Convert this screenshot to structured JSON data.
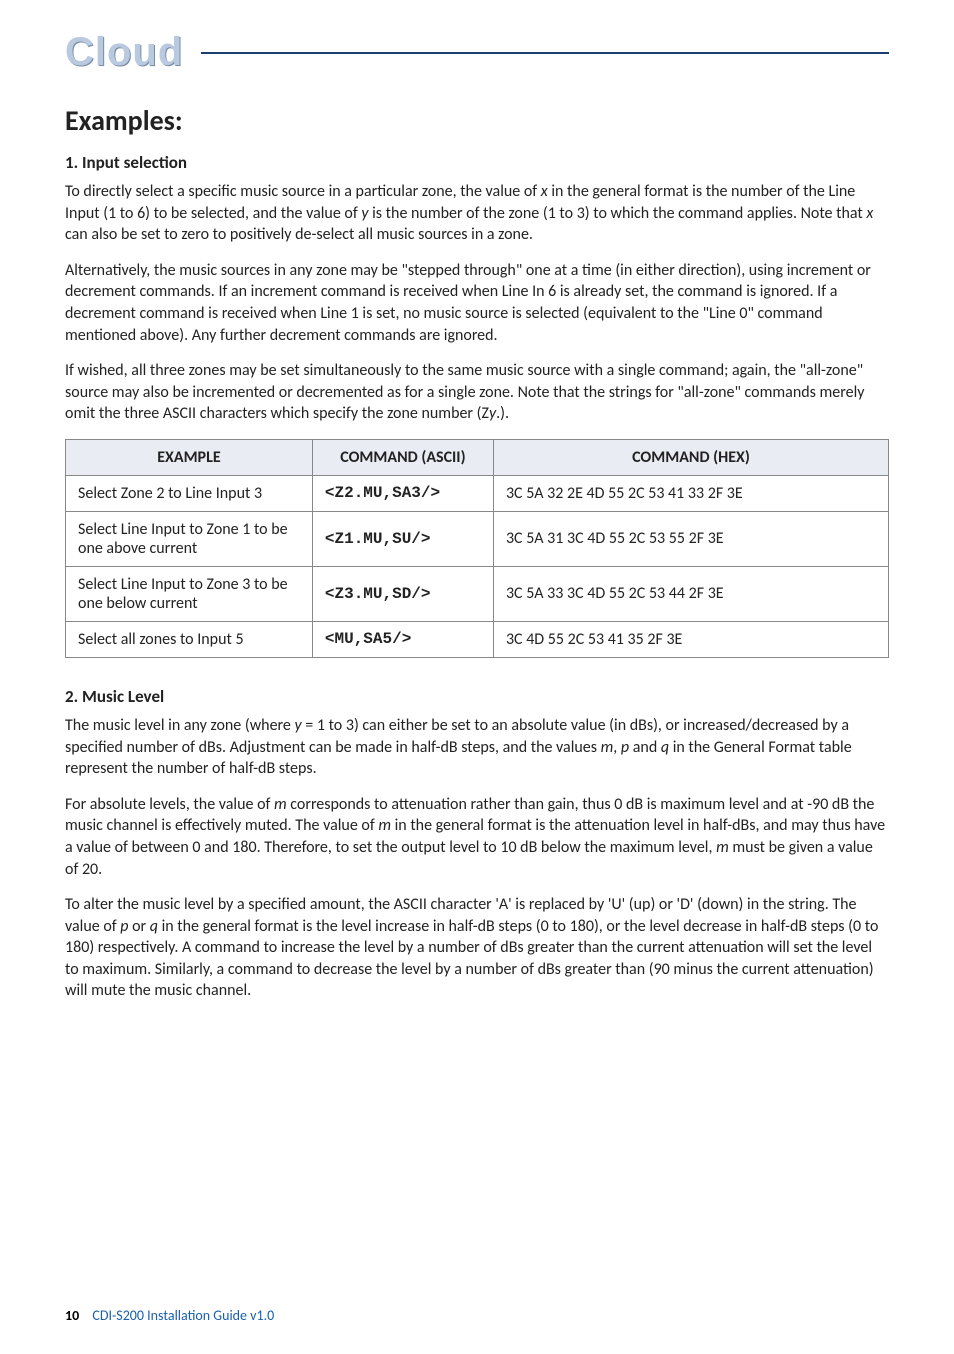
{
  "logo": {
    "text": "Cloud"
  },
  "heading": "Examples:",
  "section1": {
    "title": "1. Input selection",
    "p1_a": "To directly select a specific music source in a particular zone, the value of ",
    "p1_x": "x",
    "p1_b": " in the general format is the number of the Line Input (1 to 6) to be selected, and the value of ",
    "p1_y": "y",
    "p1_c": " is the number of the zone (1 to 3) to which the command applies. Note that ",
    "p1_x2": "x",
    "p1_d": " can also be set to zero to positively de-select all music sources in a zone.",
    "p2": "Alternatively, the music sources in any zone may be \"stepped through\" one at a time (in either direction), using increment or decrement commands. If an increment command is received when Line In 6 is already set, the command is ignored. If a decrement command is received when Line 1 is set, no music source is selected (equivalent to the \"Line 0\" command mentioned above). Any further decrement commands are ignored.",
    "p3_a": "If wished, all three zones may be set simultaneously to the same music source with a single command; again, the \"all-zone\" source may also be incremented or decremented as for a single zone. Note that the strings for \"all-zone\" commands merely omit the three ASCII characters which specify the zone number (Z",
    "p3_y": "y",
    "p3_b": ".)."
  },
  "table": {
    "headers": {
      "example": "EXAMPLE",
      "ascii": "COMMAND (ASCII)",
      "hex": "COMMAND (HEX)"
    },
    "rows": [
      {
        "example": "Select Zone 2 to Line Input 3",
        "ascii": "<Z2.MU,SA3/>",
        "hex": "3C 5A 32 2E 4D 55 2C 53 41 33 2F 3E"
      },
      {
        "example": "Select Line Input to Zone 1 to be one above current",
        "ascii": "<Z1.MU,SU/>",
        "hex": "3C 5A 31 3C 4D 55 2C 53 55 2F 3E"
      },
      {
        "example": "Select Line Input to Zone 3 to be one below current",
        "ascii": "<Z3.MU,SD/>",
        "hex": "3C 5A 33 3C 4D 55 2C 53 44 2F 3E"
      },
      {
        "example": "Select all zones to Input 5",
        "ascii": "<MU,SA5/>",
        "hex": "3C 4D 55 2C 53 41 35 2F 3E"
      }
    ]
  },
  "section2": {
    "title": "2. Music Level",
    "p1_a": "The music level in any zone (where ",
    "p1_y": "y",
    "p1_b": " = 1 to 3) can either be set to an absolute value (in dBs), or increased/decreased by a specified number of dBs. Adjustment can be made in half-dB steps, and the values ",
    "p1_m": "m",
    "p1_c": ", ",
    "p1_p": "p",
    "p1_d": " and ",
    "p1_q": "q",
    "p1_e": " in the General Format table represent the number of half-dB steps.",
    "p2_a": "For absolute levels, the value of ",
    "p2_m": "m",
    "p2_b": " corresponds to attenuation rather than gain, thus 0 dB is maximum level and at -90 dB the music channel is effectively muted. The value of ",
    "p2_m2": "m",
    "p2_c": " in the general format is the attenuation level in half-dBs, and may thus have a value of between 0 and 180. Therefore, to set the output level to 10 dB below the maximum level, ",
    "p2_m3": "m",
    "p2_d": " must be given a value of 20.",
    "p3_a": "To alter the music level by a specified amount, the ASCII character 'A' is replaced by 'U' (up) or 'D' (down) in the string. The value of ",
    "p3_p": "p",
    "p3_b": " or ",
    "p3_q": "q",
    "p3_c": " in the general format is the level increase in half-dB steps (0 to 180), or the level decrease in half-dB steps (0 to 180) respectively.  A command to increase the level by a number of dBs greater than the current attenuation will set the level to maximum. Similarly, a command to decrease the level by a number of dBs greater than (90 minus the current attenuation) will mute the music channel."
  },
  "footer": {
    "page": "10",
    "doc": "CDI-S200 Installation Guide v1.0"
  }
}
